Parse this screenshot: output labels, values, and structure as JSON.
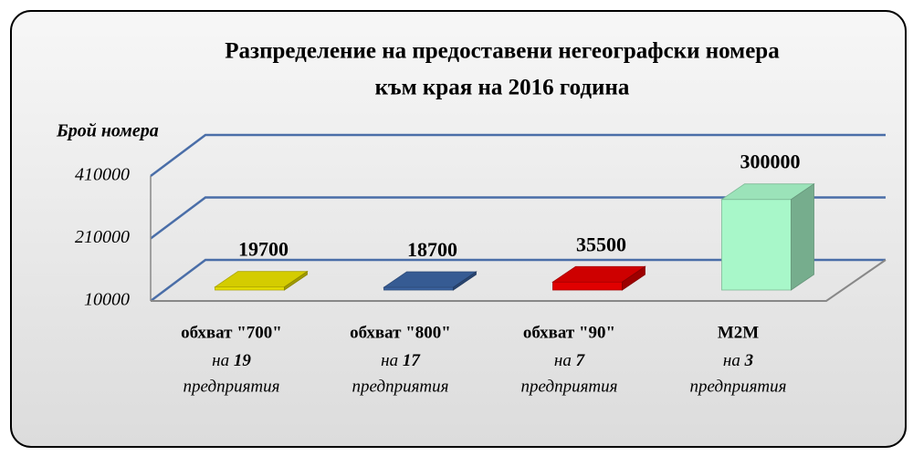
{
  "chart_data": {
    "type": "bar3d",
    "title": [
      "Разпределение на предоставени негеографски номера",
      "към края на 2016 година"
    ],
    "y_label": "Брой номера",
    "categories": [
      "обхват \"700\"",
      "обхват \"800\"",
      "обхват \"90\"",
      "M2M"
    ],
    "category_notes": [
      {
        "pre": "на",
        "count": 19,
        "post": "предприятия"
      },
      {
        "pre": "на",
        "count": 17,
        "post": "предприятия"
      },
      {
        "pre": "на",
        "count": 7,
        "post": "предприятия"
      },
      {
        "pre": "на",
        "count": 3,
        "post": "предприятия"
      }
    ],
    "values": [
      19700,
      18700,
      35500,
      300000
    ],
    "colors": [
      "#e6de00",
      "#3b63a0",
      "#e00000",
      "#a8f7c9"
    ],
    "ylim": [
      10000,
      410000
    ],
    "yticks": [
      10000,
      210000,
      410000
    ],
    "grid": true
  }
}
